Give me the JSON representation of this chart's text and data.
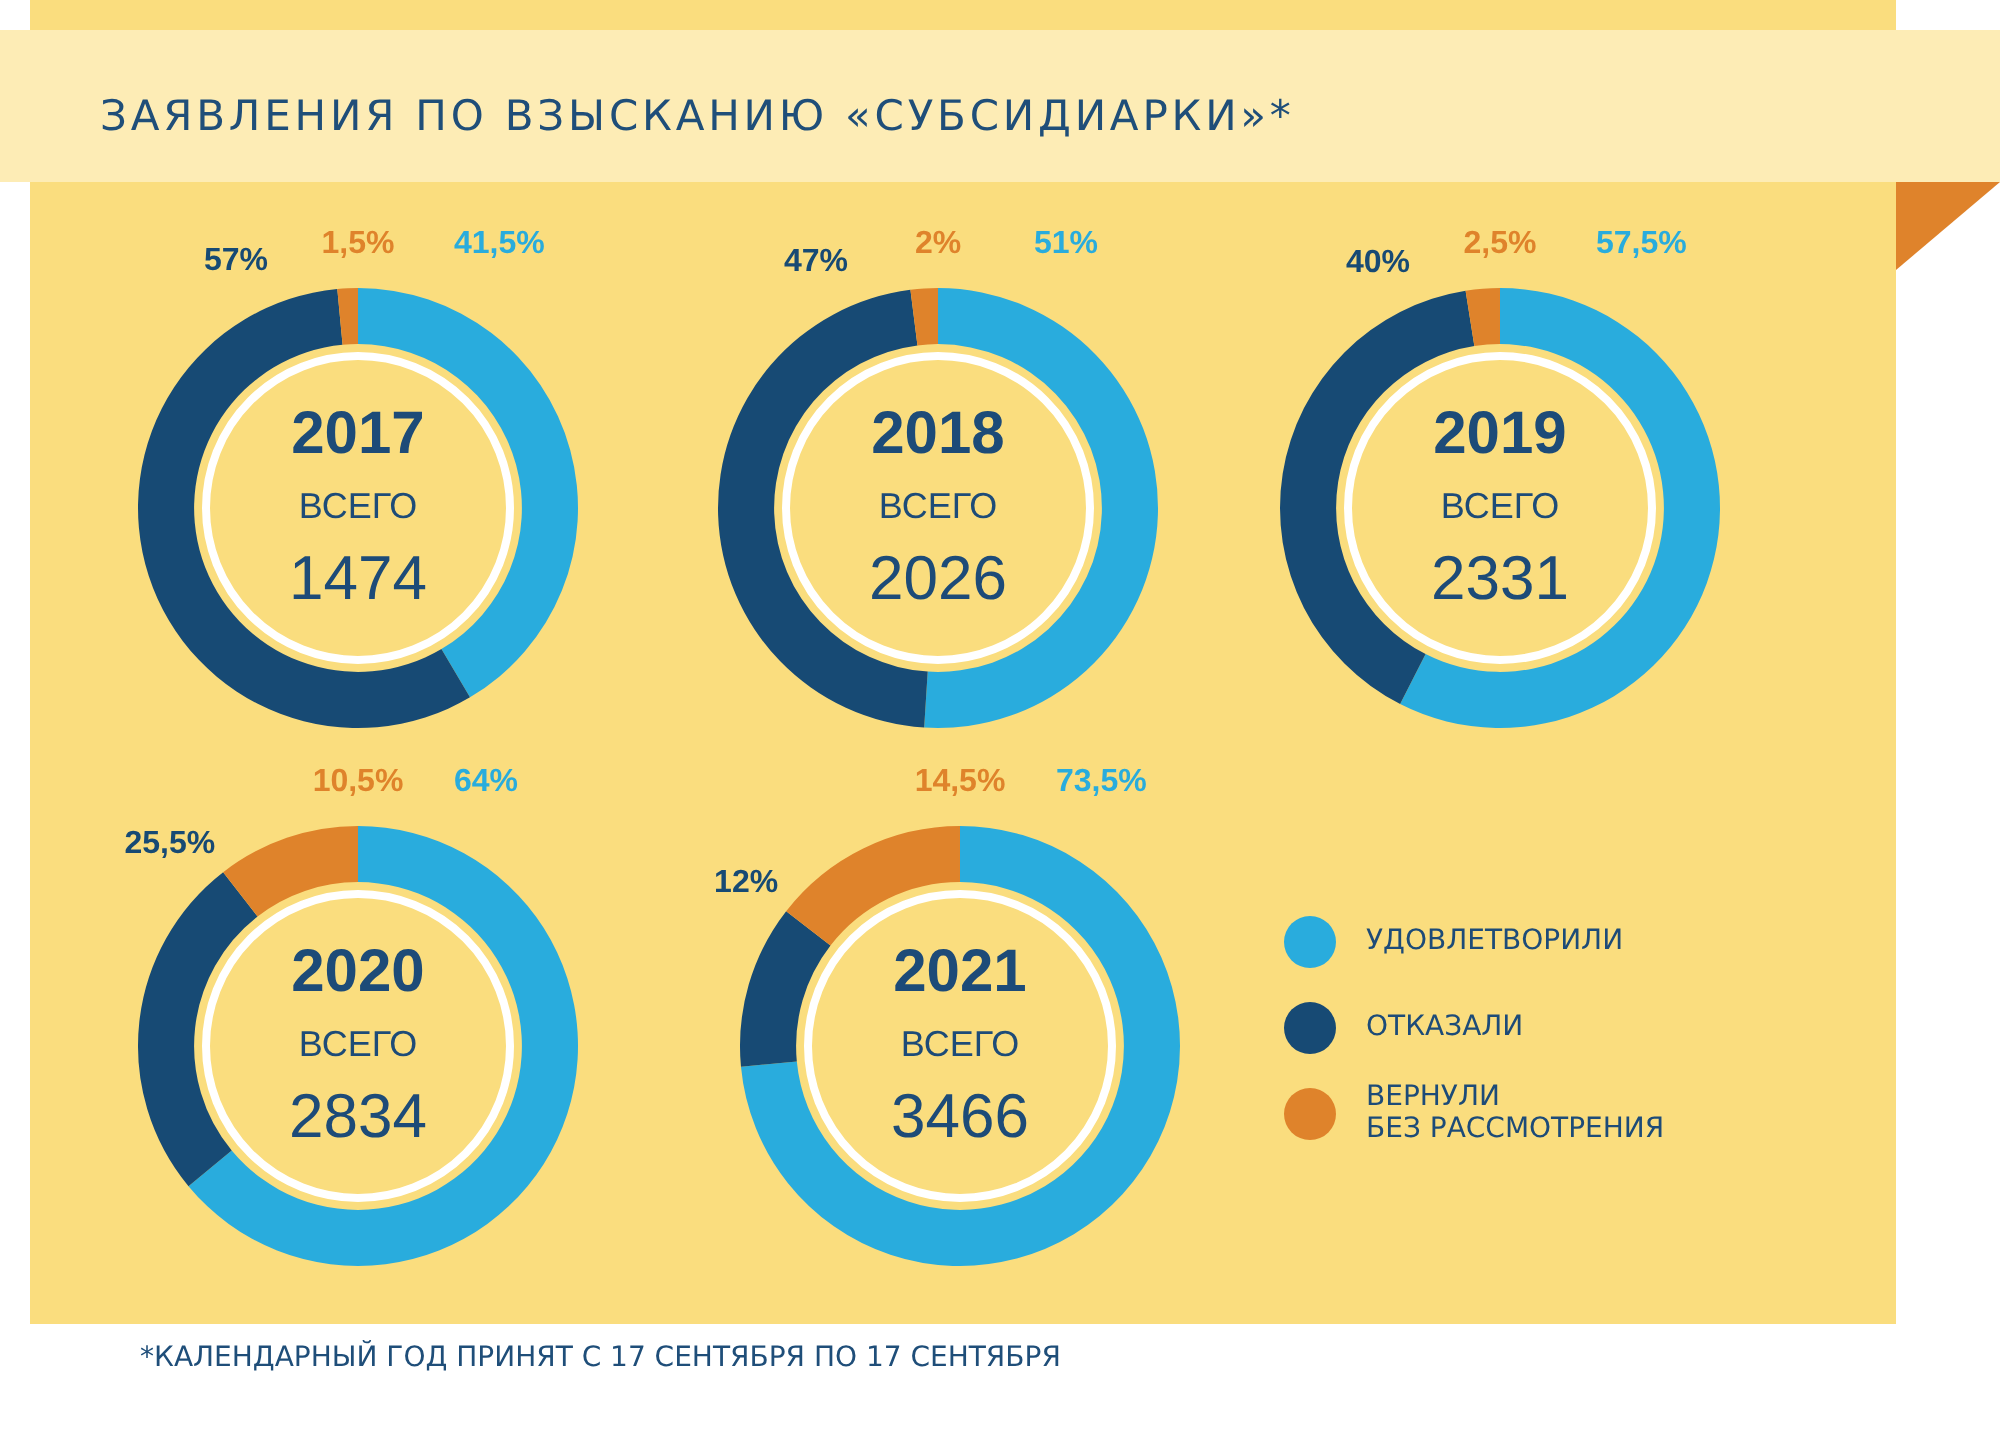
{
  "chart_data": [
    {
      "type": "other",
      "title": "ЗАЯВЛЕНИЯ ПО ВЗЫСКАНИЮ «СУБСИДИАРКИ»*",
      "annotations": [
        "*КАЛЕНДАРНЫЙ ГОД ПРИНЯТ С 17 СЕНТЯБРЯ ПО 17 СЕНТЯБРЯ"
      ]
    },
    {
      "type": "donut",
      "title": "2017",
      "annotations": [
        "ВСЕГО",
        "1474"
      ],
      "categories": [
        null,
        null,
        null
      ],
      "values": [
        41.5,
        57,
        1.5
      ],
      "colors": [
        "#29acdd",
        "#174a74",
        "#df832b"
      ],
      "value_labels": [
        "41,5%",
        "57%",
        "1,5%"
      ]
    },
    {
      "type": "donut",
      "title": "2018",
      "annotations": [
        "ВСЕГО",
        "2026"
      ],
      "categories": [
        null,
        null,
        null
      ],
      "values": [
        51,
        47,
        2
      ],
      "colors": [
        "#29acdd",
        "#174a74",
        "#df832b"
      ],
      "value_labels": [
        "51%",
        "47%",
        "2%"
      ]
    },
    {
      "type": "donut",
      "title": "2019",
      "annotations": [
        "ВСЕГО",
        "2331"
      ],
      "categories": [
        null,
        null,
        null
      ],
      "values": [
        57.5,
        40,
        2.5
      ],
      "colors": [
        "#29acdd",
        "#174a74",
        "#df832b"
      ],
      "value_labels": [
        "57,5%",
        "40%",
        "2,5%"
      ]
    },
    {
      "type": "donut",
      "title": "2020",
      "annotations": [
        "ВСЕГО",
        "2834"
      ],
      "categories": [
        null,
        null,
        null
      ],
      "values": [
        64,
        25.5,
        10.5
      ],
      "colors": [
        "#29acdd",
        "#174a74",
        "#df832b"
      ],
      "value_labels": [
        "64%",
        "25,5%",
        "10,5%"
      ]
    },
    {
      "type": "donut",
      "title": "2021",
      "annotations": [
        "ВСЕГО",
        "3466"
      ],
      "categories": [
        "УДОВЛЕТВОРИЛИ",
        "ОТКАЗАЛИ",
        "ВЕРНУЛИ БЕЗ РАССМОТРЕНИЯ"
      ],
      "values": [
        73.5,
        12,
        14.5
      ],
      "colors": [
        "#29acdd",
        "#174a74",
        "#df832b"
      ],
      "value_labels": [
        "73,5%",
        "12%",
        "14,5%"
      ],
      "legend": "right"
    }
  ]
}
